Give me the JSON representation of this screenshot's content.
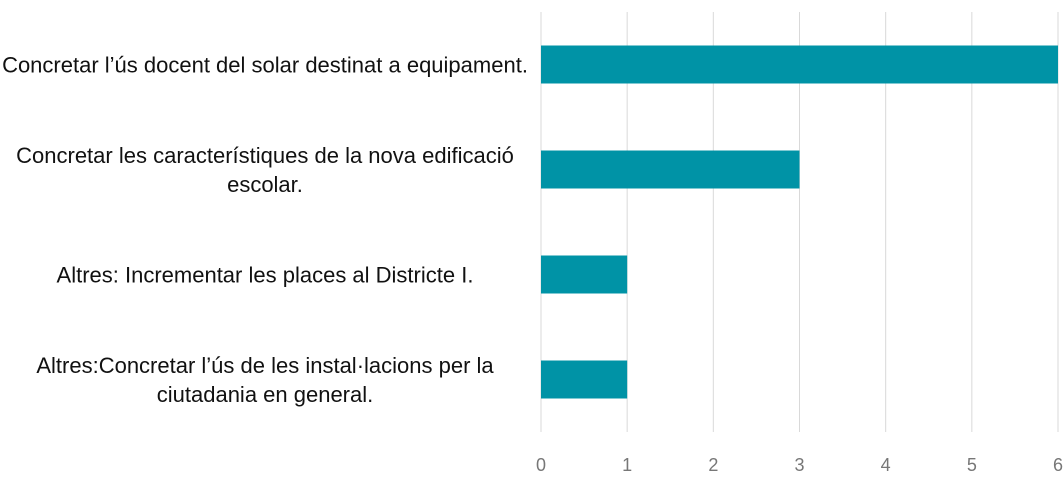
{
  "chart_data": {
    "type": "bar",
    "orientation": "horizontal",
    "categories": [
      "Concretar l’ús docent del solar destinat a equipament.",
      "Concretar les característiques de la nova edificació escolar.",
      "Altres: Incrementar les places al Districte I.",
      "Altres:Concretar l’ús de les instal·lacions per la ciutadania en general."
    ],
    "values": [
      6,
      3,
      1,
      1
    ],
    "color": "#0093a6",
    "xlim": [
      0,
      6
    ],
    "xticks": [
      0,
      1,
      2,
      3,
      4,
      5,
      6
    ],
    "grid": true
  }
}
